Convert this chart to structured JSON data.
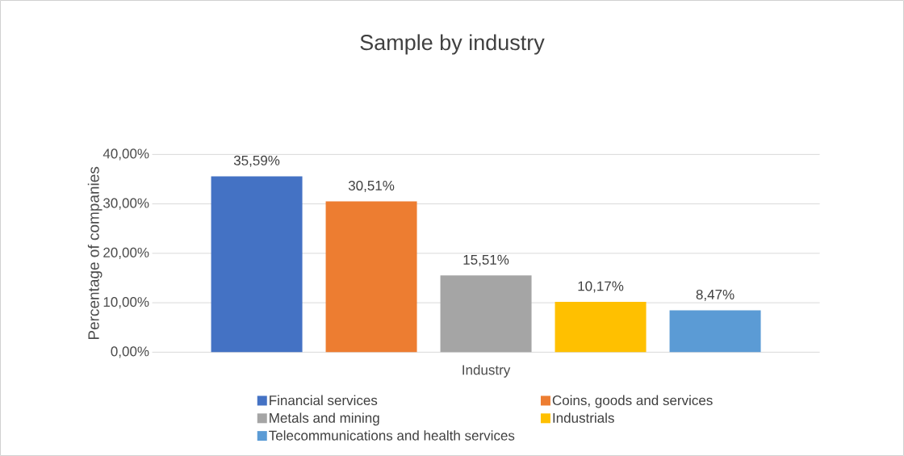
{
  "chart_data": {
    "type": "bar",
    "title": "Sample by industry",
    "ylabel": "Percentage of companies",
    "categories": [
      "Industry"
    ],
    "series": [
      {
        "name": "Financial services",
        "color": "#4472c4",
        "values": [
          35.59
        ],
        "value_labels": [
          "35,59%"
        ]
      },
      {
        "name": "Coins, goods and services",
        "color": "#ed7d31",
        "values": [
          30.51
        ],
        "value_labels": [
          "30,51%"
        ]
      },
      {
        "name": "Metals and mining",
        "color": "#a5a5a5",
        "values": [
          15.51
        ],
        "value_labels": [
          "15,51%"
        ]
      },
      {
        "name": "Industrials",
        "color": "#ffc000",
        "values": [
          10.17
        ],
        "value_labels": [
          "10,17%"
        ]
      },
      {
        "name": "Telecommunications and health services",
        "color": "#5b9bd5",
        "values": [
          8.47
        ],
        "value_labels": [
          "8,47%"
        ]
      }
    ],
    "ylim": [
      0,
      40
    ],
    "yticks": [
      {
        "value": 0,
        "label": "0,00%"
      },
      {
        "value": 10,
        "label": "10,00%"
      },
      {
        "value": 20,
        "label": "20,00%"
      },
      {
        "value": 30,
        "label": "30,00%"
      },
      {
        "value": 40,
        "label": "40,00%"
      }
    ],
    "grid": "y",
    "legend": "bottom"
  }
}
